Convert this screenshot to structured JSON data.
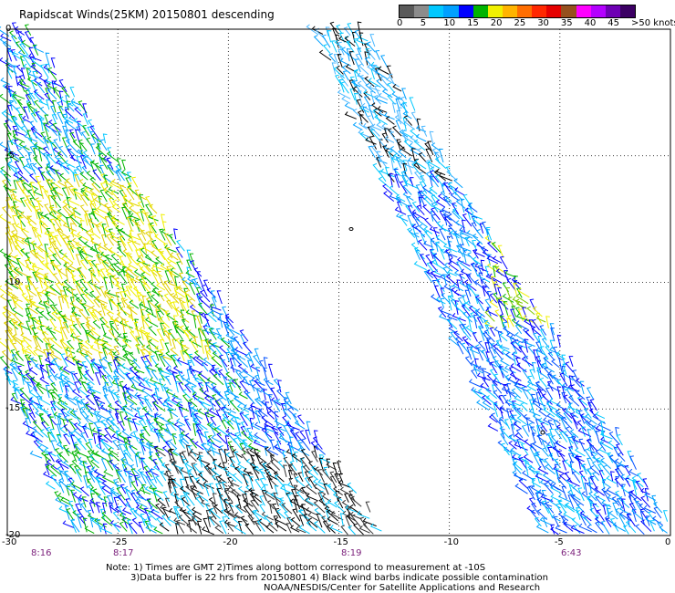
{
  "title": "Rapidscat Winds(25KM) 20150801 descending",
  "legend": {
    "labels": [
      "0",
      "5",
      "10",
      "15",
      "20",
      "25",
      "30",
      "35",
      "40",
      "45",
      ">50 knots"
    ],
    "colors": [
      "#5a5a5a",
      "#8c8c8c",
      "#00c8ff",
      "#00a0ff",
      "#0000ff",
      "#00b400",
      "#f0f000",
      "#ffb400",
      "#ff6e00",
      "#ff2800",
      "#e60000",
      "#96501e",
      "#ff00ff",
      "#b400ff",
      "#6e00b4",
      "#3c0064"
    ]
  },
  "axes": {
    "lat_labels": [
      "0",
      "-5",
      "-10",
      "-15",
      "-20"
    ],
    "lon_labels": [
      "-30",
      "-25",
      "-20",
      "-15",
      "-10",
      "-5",
      "0"
    ]
  },
  "times": [
    "8:16",
    "8:17",
    "8:19",
    "6:43"
  ],
  "notes": [
    "Note: 1) Times are GMT 2)Times along bottom correspond to measurement at -10S",
    "3)Data buffer is 22 hrs from 20150801 4) Black wind barbs indicate possible contamination",
    "NOAA/NESDIS/Center for Satellite Applications and Research"
  ]
}
